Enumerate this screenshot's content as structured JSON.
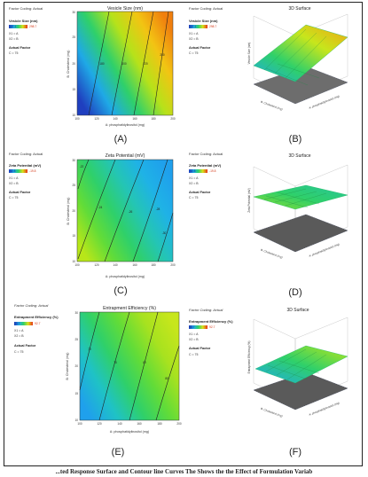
{
  "caption": "...ted Response Surface and Contour line Curves  The Shows the the Effect of Formulation Variab",
  "panels": [
    {
      "label": "(A)",
      "contour": {
        "side_title": "Factor Coding: Actual",
        "response_label": "Vesicle Size (nm)",
        "min_value": "147.1",
        "max_value": "298.7",
        "x1": "X1 = A",
        "x2": "X2 = B",
        "actual_factor_label": "Actual Factor",
        "actual_factor_value": "C = 75",
        "chart_title": "Vesicle Size (nm)",
        "ylabel": "B: Cholesterol (mg)",
        "xlabel": "A: phosphatidylinositol (mg)",
        "yticks": [
          "10",
          "15",
          "20",
          "25",
          "30"
        ],
        "xticks": [
          "100",
          "120",
          "140",
          "160",
          "180",
          "200"
        ],
        "contour_labels": [
          "180",
          "200",
          "220",
          "250"
        ],
        "colors": [
          "#1f3fbf",
          "#1fa9e6",
          "#2fd06a",
          "#b6e21a",
          "#f2c413",
          "#f07f0e"
        ]
      },
      "surface": {
        "title": "3D Surface",
        "zlabel": "Vesicle Size (nm)",
        "xlabel": "A: phosphatidylinositol (mg)",
        "ylabel": "B: Cholesterol (mg)",
        "colors": [
          "#1fa9e6",
          "#2fd06a",
          "#c7e61c",
          "#f2a313"
        ]
      }
    },
    {
      "label": "(B)"
    },
    {
      "label": "(C)",
      "contour": {
        "side_title": "Factor Coding: Actual",
        "response_label": "Zeta Potential (mV)",
        "min_value": "-32.8",
        "max_value": "-19.8",
        "x1": "X1 = A",
        "x2": "X2 = B",
        "actual_factor_label": "Actual Factor",
        "actual_factor_value": "C = 75",
        "chart_title": "Zeta Potential (mV)",
        "ylabel": "B: Cholesterol (mg)",
        "xlabel": "A: phosphatidylinositol (mg)",
        "yticks": [
          "10",
          "15",
          "20",
          "25",
          "30"
        ],
        "xticks": [
          "100",
          "120",
          "140",
          "160",
          "180",
          "200"
        ],
        "contour_labels": [
          "-22",
          "-24",
          "-26",
          "-28",
          "-30"
        ],
        "colors": [
          "#b8e619",
          "#62dc38",
          "#2fd06a",
          "#24c5b4",
          "#1fb2e6",
          "#1fa0ec"
        ]
      },
      "surface": {
        "title": "3D Surface",
        "zlabel": "Zeta Potential (mV)",
        "xlabel": "A: phosphatidylinositol (mg)",
        "ylabel": "B: Cholesterol (mg)",
        "colors": [
          "#8fdc2a",
          "#2fd06a",
          "#27c49a"
        ]
      }
    },
    {
      "label": "(D)"
    },
    {
      "label": "(E)",
      "contour": {
        "side_title": "Factor Coding: Actual",
        "response_label": "Entrapment Efficiency (%)",
        "min_value": "63.7",
        "max_value": "92.7",
        "x1": "X1 = A",
        "x2": "X2 = B",
        "actual_factor_label": "Actual Factor",
        "actual_factor_value": "C = 75",
        "chart_title": "Entrapment Efficiency (%)",
        "ylabel": "B: Cholesterol (mg)",
        "xlabel": "A: phosphatidylinositol (mg)",
        "yticks": [
          "10",
          "15",
          "20",
          "25",
          "30"
        ],
        "xticks": [
          "100",
          "120",
          "140",
          "160",
          "180",
          "200"
        ],
        "contour_labels": [
          "70",
          "75",
          "80",
          "85"
        ],
        "colors": [
          "#1fa0ec",
          "#1fc2c6",
          "#2fd06a",
          "#62dc38",
          "#a8e21f",
          "#c7e61c"
        ]
      },
      "surface": {
        "title": "3D Surface",
        "zlabel": "Entrapment Efficiency (%)",
        "xlabel": "A: phosphatidylinositol (mg)",
        "ylabel": "B: Cholesterol (mg)",
        "colors": [
          "#1fa9e6",
          "#2fd06a",
          "#b8e619"
        ]
      }
    },
    {
      "label": "(F)"
    }
  ],
  "chart_data": [
    {
      "type": "heatmap",
      "title": "Vesicle Size (nm)",
      "xlabel": "A: phosphatidylinositol (mg)",
      "ylabel": "B: Cholesterol (mg)",
      "xlim": [
        100,
        200
      ],
      "ylim": [
        10,
        30
      ],
      "zlim": [
        147.1,
        298.7
      ],
      "contour_levels": [
        180,
        200,
        220,
        250
      ],
      "legend": "left"
    },
    {
      "type": "heatmap",
      "title": "Zeta Potential (mV)",
      "xlabel": "A: phosphatidylinositol (mg)",
      "ylabel": "B: Cholesterol (mg)",
      "xlim": [
        100,
        200
      ],
      "ylim": [
        10,
        30
      ],
      "zlim": [
        -32.8,
        -19.8
      ],
      "contour_levels": [
        -22,
        -24,
        -26,
        -28,
        -30
      ],
      "legend": "left"
    },
    {
      "type": "heatmap",
      "title": "Entrapment Efficiency (%)",
      "xlabel": "A: phosphatidylinositol (mg)",
      "ylabel": "B: Cholesterol (mg)",
      "xlim": [
        100,
        200
      ],
      "ylim": [
        10,
        30
      ],
      "zlim": [
        63.7,
        92.7
      ],
      "contour_levels": [
        70,
        75,
        80,
        85
      ],
      "legend": "left"
    }
  ]
}
